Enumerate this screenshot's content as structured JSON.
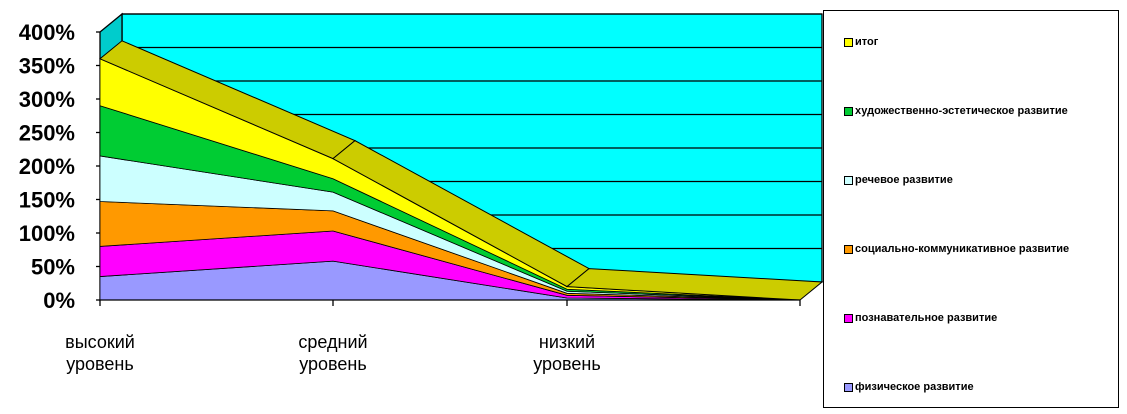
{
  "chart_data": {
    "type": "area",
    "stacked": true,
    "three_d": true,
    "categories": [
      "высокий уровень",
      "средний уровень",
      "низкий уровень",
      ""
    ],
    "y_ticks": [
      "0%",
      "50%",
      "100%",
      "150%",
      "200%",
      "250%",
      "300%",
      "350%",
      "400%"
    ],
    "ylim": [
      0,
      400
    ],
    "grid": true,
    "legend_position": "right",
    "series": [
      {
        "name": "физическое развитие",
        "color": "#9999ff",
        "values": [
          35,
          58,
          3,
          0
        ]
      },
      {
        "name": "познавательное развитие",
        "color": "#ff00ff",
        "values": [
          45,
          45,
          4,
          0
        ]
      },
      {
        "name": "социально-коммуникативное развитие",
        "color": "#ff9900",
        "values": [
          67,
          30,
          3,
          0
        ]
      },
      {
        "name": "речевое развитие",
        "color": "#ccffff",
        "values": [
          68,
          28,
          3,
          0
        ]
      },
      {
        "name": "художественно-эстетическое развитие",
        "color": "#00cc33",
        "values": [
          75,
          20,
          3,
          0
        ]
      },
      {
        "name": "итог",
        "color": "#ffff00",
        "values": [
          70,
          30,
          4,
          0
        ]
      }
    ],
    "colors": {
      "plot_background": "#00ffff",
      "wall_side": "#00cccc",
      "top_face": "#cccc00",
      "gridline": "#000000"
    }
  }
}
